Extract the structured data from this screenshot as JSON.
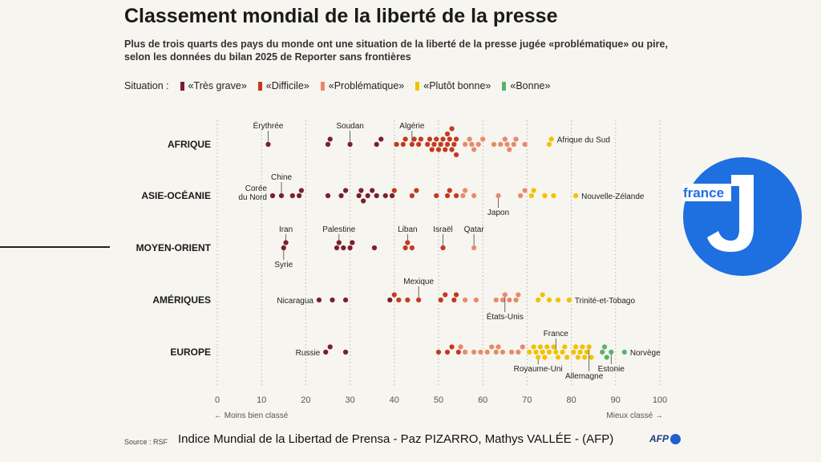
{
  "title": "Classement mondial de la liberté de la presse",
  "subtitle": "Plus de trois quarts des pays du monde ont une situation de la liberté de la presse jugée «problématique» ou pire, selon les données du bilan 2025 de Reporter sans frontières",
  "legend": {
    "label": "Situation :",
    "items": [
      {
        "name": "«Très grave»",
        "color": "#7a1f2b"
      },
      {
        "name": "«Difficile»",
        "color": "#c43a1f"
      },
      {
        "name": "«Problématique»",
        "color": "#e88a6a"
      },
      {
        "name": "«Plutôt bonne»",
        "color": "#f2c200"
      },
      {
        "name": "«Bonne»",
        "color": "#5bb36a"
      }
    ]
  },
  "source": "Source : RSF",
  "caption": "Indice Mundial de la Libertad de Prensa - Paz PIZARRO, Mathys VALLÉE - (AFP)",
  "afp_label": "AFP",
  "logo_label": "france",
  "chart_data": {
    "type": "scatter",
    "xlim": [
      0,
      100
    ],
    "xticks": [
      0,
      10,
      20,
      30,
      40,
      50,
      60,
      70,
      80,
      90,
      100
    ],
    "xlabel_left": "← Moins bien classé",
    "xlabel_right": "Mieux classé →",
    "grid": true,
    "categories": [
      "AFRIQUE",
      "ASIE-OCÉANIE",
      "MOYEN-ORIENT",
      "AMÉRIQUES",
      "EUROPE"
    ],
    "series": [
      {
        "region": "AFRIQUE",
        "scores": [
          11.5,
          25,
          25.5,
          30,
          36,
          37,
          40.5,
          42,
          42.5,
          44,
          44.5,
          45.5,
          46,
          47.5,
          48,
          48.5,
          49,
          49.5,
          50,
          50.5,
          51,
          51.5,
          52,
          52,
          52.5,
          53,
          53,
          53.5,
          54,
          54,
          56,
          57,
          57.5,
          58,
          59,
          60,
          62.5,
          64,
          65,
          65.5,
          66,
          67,
          67.5,
          69.5,
          75,
          75.5
        ]
      },
      {
        "region": "ASIE-OCÉANIE",
        "scores": [
          12.5,
          14.5,
          17,
          18.5,
          19,
          25,
          28,
          29,
          32,
          32.5,
          33,
          34,
          35,
          36,
          38,
          39.5,
          40,
          44,
          45,
          49.5,
          52,
          52.5,
          54,
          55.5,
          56,
          58,
          63.5,
          68.5,
          69.5,
          71,
          71.5,
          74,
          76,
          81
        ]
      },
      {
        "region": "MOYEN-ORIENT",
        "scores": [
          15,
          15.5,
          27,
          27.5,
          28.5,
          30,
          30.5,
          35.5,
          42.5,
          43,
          44,
          51,
          58
        ]
      },
      {
        "region": "AMÉRIQUES",
        "scores": [
          23,
          26,
          29,
          39,
          40,
          41,
          43,
          45.5,
          50.5,
          51.5,
          53.5,
          54,
          56,
          58.5,
          63,
          64.5,
          65,
          66,
          67.5,
          68,
          72.5,
          73.5,
          75,
          77,
          79.5
        ]
      },
      {
        "region": "EUROPE",
        "scores": [
          24.5,
          25.5,
          29,
          50,
          52,
          53,
          54.5,
          55,
          56,
          58,
          59.5,
          61,
          62,
          63,
          63.5,
          64.5,
          66.5,
          68,
          69,
          70.5,
          71.5,
          72,
          72.5,
          73,
          73.5,
          74,
          74.5,
          75,
          76,
          76.5,
          77,
          78,
          78.5,
          79,
          80.5,
          81,
          81.5,
          82,
          82.5,
          83,
          83.5,
          84,
          84.5,
          87,
          87.5,
          88,
          89,
          92
        ]
      }
    ],
    "thresholds": [
      40,
      55,
      70,
      85
    ],
    "annotations": [
      {
        "region": "AFRIQUE",
        "label": "Érythrée",
        "score": 11.5,
        "pos": "above"
      },
      {
        "region": "AFRIQUE",
        "label": "Soudan",
        "score": 30,
        "pos": "above"
      },
      {
        "region": "AFRIQUE",
        "label": "Algérie",
        "score": 44,
        "pos": "above"
      },
      {
        "region": "AFRIQUE",
        "label": "Afrique du Sud",
        "score": 75.5,
        "pos": "right"
      },
      {
        "region": "ASIE-OCÉANIE",
        "label": "Chine",
        "score": 14.5,
        "pos": "above"
      },
      {
        "region": "ASIE-OCÉANIE",
        "label": "Corée du Nord",
        "score": 12.5,
        "pos": "left"
      },
      {
        "region": "ASIE-OCÉANIE",
        "label": "Japon",
        "score": 63.5,
        "pos": "below"
      },
      {
        "region": "ASIE-OCÉANIE",
        "label": "Nouvelle-Zélande",
        "score": 81,
        "pos": "right"
      },
      {
        "region": "MOYEN-ORIENT",
        "label": "Iran",
        "score": 15.5,
        "pos": "above"
      },
      {
        "region": "MOYEN-ORIENT",
        "label": "Syrie",
        "score": 15,
        "pos": "below"
      },
      {
        "region": "MOYEN-ORIENT",
        "label": "Palestine",
        "score": 27.5,
        "pos": "above"
      },
      {
        "region": "MOYEN-ORIENT",
        "label": "Liban",
        "score": 43,
        "pos": "above"
      },
      {
        "region": "MOYEN-ORIENT",
        "label": "Israël",
        "score": 51,
        "pos": "above"
      },
      {
        "region": "MOYEN-ORIENT",
        "label": "Qatar",
        "score": 58,
        "pos": "above"
      },
      {
        "region": "AMÉRIQUES",
        "label": "Nicaragua",
        "score": 23,
        "pos": "left"
      },
      {
        "region": "AMÉRIQUES",
        "label": "Mexique",
        "score": 45.5,
        "pos": "above"
      },
      {
        "region": "AMÉRIQUES",
        "label": "États-Unis",
        "score": 65,
        "pos": "below"
      },
      {
        "region": "AMÉRIQUES",
        "label": "Trinité-et-Tobago",
        "score": 79.5,
        "pos": "right"
      },
      {
        "region": "EUROPE",
        "label": "Russie",
        "score": 24.5,
        "pos": "left"
      },
      {
        "region": "EUROPE",
        "label": "France",
        "score": 76.5,
        "pos": "above"
      },
      {
        "region": "EUROPE",
        "label": "Royaume-Uni",
        "score": 72.5,
        "pos": "below"
      },
      {
        "region": "EUROPE",
        "label": "Allemagne",
        "score": 84,
        "pos": "below2"
      },
      {
        "region": "EUROPE",
        "label": "Estonie",
        "score": 89,
        "pos": "below"
      },
      {
        "region": "EUROPE",
        "label": "Norvège",
        "score": 92,
        "pos": "right"
      }
    ]
  }
}
